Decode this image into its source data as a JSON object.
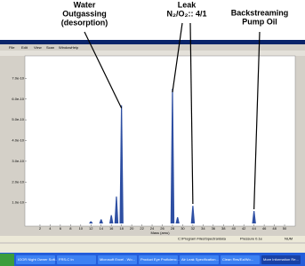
{
  "annotations": [
    {
      "lines": [
        "Water",
        "Outgassing",
        "(desorption)"
      ]
    },
    {
      "lines": [
        "Leak",
        "N₂/O₂:: 4/1"
      ]
    },
    {
      "lines": [
        "Backstreaming",
        "Pump Oil"
      ]
    }
  ],
  "menu": [
    "File",
    "Edit",
    "View",
    "Scan",
    "Window",
    "Help"
  ],
  "chart_data": {
    "type": "bar",
    "x_label": "Mass (amu)",
    "x": [
      12,
      14,
      16,
      17,
      18,
      28,
      29,
      32,
      44
    ],
    "values": [
      0.1,
      0.2,
      0.4,
      1.3,
      5.7,
      6.5,
      0.3,
      0.85,
      0.6
    ],
    "color": "#2e4fa3",
    "xlim": [
      0,
      52
    ],
    "xticks": [
      2,
      4,
      6,
      8,
      10,
      12,
      14,
      16,
      18,
      20,
      22,
      24,
      26,
      28,
      30,
      32,
      34,
      36,
      38,
      40,
      42,
      44,
      46,
      48,
      50
    ],
    "ylim": [
      0,
      8
    ],
    "yticks": [
      {
        "value": 1,
        "label": "1.0e-10"
      },
      {
        "value": 2,
        "label": "2.0e-10"
      },
      {
        "value": 3,
        "label": "3.0e-10"
      },
      {
        "value": 4,
        "label": "4.0e-10"
      },
      {
        "value": 5,
        "label": "5.0e-10"
      },
      {
        "value": 6,
        "label": "6.0e-10"
      },
      {
        "value": 7,
        "label": "7.0e-10"
      }
    ]
  },
  "status": [
    "C:\\Program Files\\Spectra\\data",
    "Pressure 0.1e",
    "NUM"
  ],
  "taskbar": [
    "IGOR Night Owner Soft...",
    "FRS-C In",
    "Microsoft Excel - Wo...",
    "Product Eye Proficienc...",
    "Air Leak Specification...",
    "Clean Res/Ea/Wo...",
    "More Information Re..."
  ]
}
